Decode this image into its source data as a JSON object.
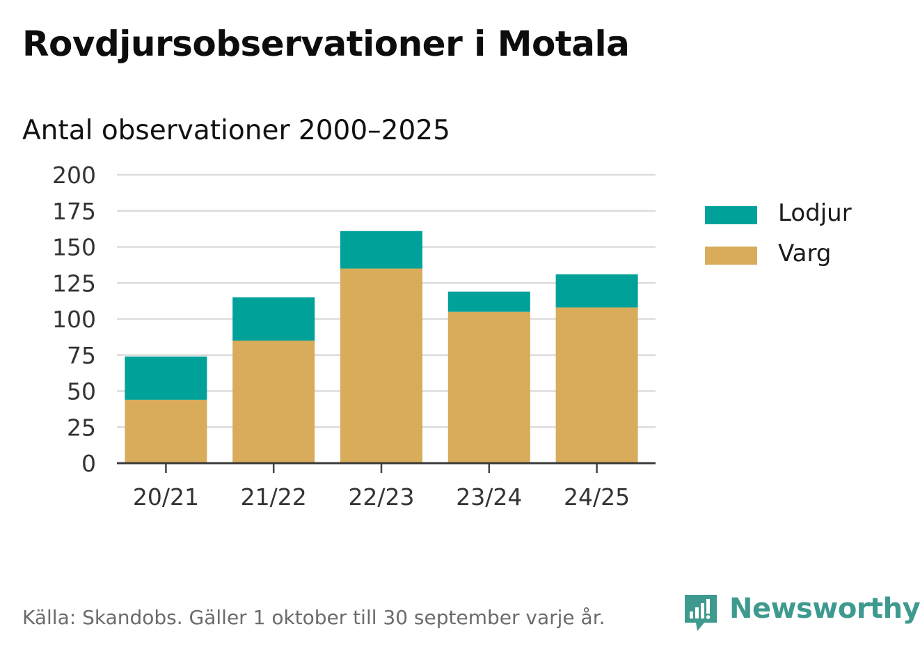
{
  "title": "Rovdjursobservationer i Motala",
  "subtitle": "Antal observationer 2000–2025",
  "footer": "Källa: Skandobs. Gäller 1 oktober till 30 september varje år.",
  "brand": {
    "name": "Newsworthy",
    "icon": "newsworthy-logo-icon",
    "color": "#3e9a8f"
  },
  "chart_data": {
    "type": "bar",
    "stacked": true,
    "categories": [
      "20/21",
      "21/22",
      "22/23",
      "23/24",
      "24/25"
    ],
    "series": [
      {
        "name": "Varg",
        "color": "#d8ac5a",
        "values": [
          44,
          85,
          135,
          105,
          108
        ]
      },
      {
        "name": "Lodjur",
        "color": "#00a199",
        "values": [
          30,
          30,
          26,
          14,
          23
        ]
      }
    ],
    "legend": [
      {
        "name": "Lodjur",
        "color": "#00a199"
      },
      {
        "name": "Varg",
        "color": "#d8ac5a"
      }
    ],
    "legend_position": "right",
    "ylim": [
      0,
      200
    ],
    "yticks": [
      0,
      25,
      50,
      75,
      100,
      125,
      150,
      175,
      200
    ],
    "grid": true,
    "xlabel": "",
    "ylabel": ""
  }
}
